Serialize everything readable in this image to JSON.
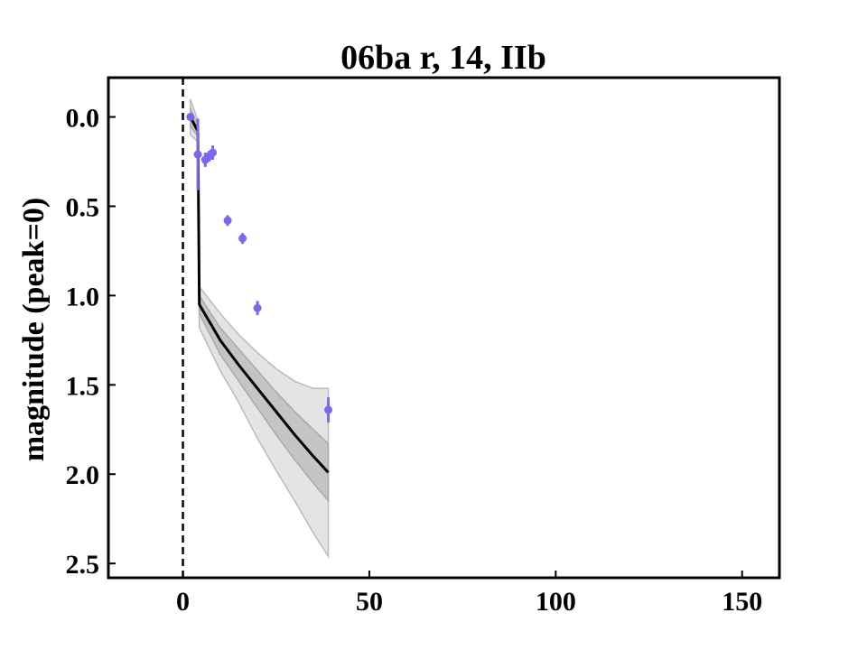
{
  "chart_data": {
    "type": "line",
    "title": "06ba r, 14, IIb",
    "xlabel": "",
    "ylabel": "magnitude (peak=0)",
    "xlim": [
      -20,
      160
    ],
    "ylim": [
      2.58,
      -0.22
    ],
    "y_inverted": true,
    "xticks": [
      0,
      50,
      100,
      150
    ],
    "yticks": [
      0.0,
      0.5,
      1.0,
      1.5,
      2.0,
      2.5
    ],
    "xtick_labels": [
      "0",
      "50",
      "100",
      "150"
    ],
    "ytick_labels": [
      "0.0",
      "0.5",
      "1.0",
      "1.5",
      "2.0",
      "2.5"
    ],
    "grid": false,
    "legend": "none",
    "reference_line": {
      "x": 0,
      "style": "dashed",
      "color": "#000000"
    },
    "observations": {
      "name": "",
      "color": "#7b68ee",
      "points": [
        {
          "x": 2.0,
          "y": 0.0,
          "err": 0.02
        },
        {
          "x": 4.0,
          "y": 0.21,
          "err": 0.2
        },
        {
          "x": 6.0,
          "y": 0.24,
          "err": 0.04
        },
        {
          "x": 7.0,
          "y": 0.22,
          "err": 0.03
        },
        {
          "x": 8.0,
          "y": 0.2,
          "err": 0.04
        },
        {
          "x": 12.0,
          "y": 0.58,
          "err": 0.03
        },
        {
          "x": 16.0,
          "y": 0.68,
          "err": 0.03
        },
        {
          "x": 20.0,
          "y": 1.07,
          "err": 0.04
        },
        {
          "x": 39.0,
          "y": 1.64,
          "err": 0.07
        }
      ]
    },
    "model": {
      "color": "#000000",
      "mean": [
        {
          "x": 2.0,
          "y": 0.0
        },
        {
          "x": 4.0,
          "y": 0.08
        },
        {
          "x": 4.2,
          "y": 0.55
        },
        {
          "x": 4.4,
          "y": 1.05
        },
        {
          "x": 10.0,
          "y": 1.25
        },
        {
          "x": 15.0,
          "y": 1.39
        },
        {
          "x": 20.0,
          "y": 1.52
        },
        {
          "x": 25.0,
          "y": 1.65
        },
        {
          "x": 30.0,
          "y": 1.78
        },
        {
          "x": 35.0,
          "y": 1.9
        },
        {
          "x": 39.0,
          "y": 1.99
        }
      ],
      "band_1sigma": {
        "color": "#bbbbbb",
        "upper": [
          {
            "x": 2.0,
            "y": -0.05
          },
          {
            "x": 4.0,
            "y": 0.05
          },
          {
            "x": 4.4,
            "y": 1.0
          },
          {
            "x": 10.0,
            "y": 1.18
          },
          {
            "x": 15.0,
            "y": 1.3
          },
          {
            "x": 20.0,
            "y": 1.42
          },
          {
            "x": 25.0,
            "y": 1.54
          },
          {
            "x": 30.0,
            "y": 1.65
          },
          {
            "x": 35.0,
            "y": 1.75
          },
          {
            "x": 39.0,
            "y": 1.83
          }
        ],
        "lower": [
          {
            "x": 2.0,
            "y": 0.05
          },
          {
            "x": 4.0,
            "y": 0.11
          },
          {
            "x": 4.4,
            "y": 1.1
          },
          {
            "x": 10.0,
            "y": 1.33
          },
          {
            "x": 15.0,
            "y": 1.48
          },
          {
            "x": 20.0,
            "y": 1.63
          },
          {
            "x": 25.0,
            "y": 1.78
          },
          {
            "x": 30.0,
            "y": 1.92
          },
          {
            "x": 35.0,
            "y": 2.05
          },
          {
            "x": 39.0,
            "y": 2.15
          }
        ]
      },
      "band_2sigma": {
        "color": "#dddddd",
        "upper": [
          {
            "x": 2.0,
            "y": -0.1
          },
          {
            "x": 4.0,
            "y": 0.02
          },
          {
            "x": 4.4,
            "y": 0.95
          },
          {
            "x": 10.0,
            "y": 1.1
          },
          {
            "x": 15.0,
            "y": 1.22
          },
          {
            "x": 20.0,
            "y": 1.32
          },
          {
            "x": 25.0,
            "y": 1.41
          },
          {
            "x": 30.0,
            "y": 1.48
          },
          {
            "x": 35.0,
            "y": 1.52
          },
          {
            "x": 39.0,
            "y": 1.52
          }
        ],
        "lower": [
          {
            "x": 2.0,
            "y": 0.1
          },
          {
            "x": 4.0,
            "y": 0.14
          },
          {
            "x": 4.4,
            "y": 1.18
          },
          {
            "x": 10.0,
            "y": 1.42
          },
          {
            "x": 15.0,
            "y": 1.6
          },
          {
            "x": 20.0,
            "y": 1.8
          },
          {
            "x": 25.0,
            "y": 1.98
          },
          {
            "x": 30.0,
            "y": 2.15
          },
          {
            "x": 35.0,
            "y": 2.33
          },
          {
            "x": 39.0,
            "y": 2.46
          }
        ]
      }
    }
  }
}
